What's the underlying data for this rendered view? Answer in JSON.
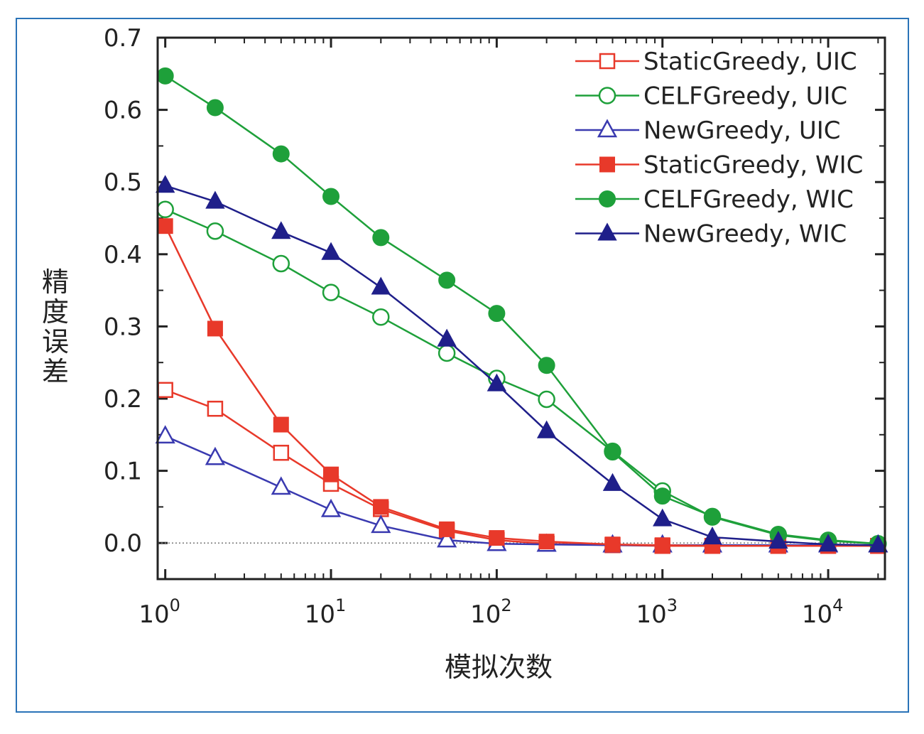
{
  "chart_data": {
    "type": "line",
    "xscale": "log",
    "xlabel": "模拟次数",
    "ylabel": "精度误差",
    "xlim": [
      0.9,
      22000
    ],
    "ylim": [
      -0.05,
      0.7
    ],
    "x_ticks": [
      {
        "value": 1,
        "base": "10",
        "exp": "0"
      },
      {
        "value": 10,
        "base": "10",
        "exp": "1"
      },
      {
        "value": 100,
        "base": "10",
        "exp": "2"
      },
      {
        "value": 1000,
        "base": "10",
        "exp": "3"
      },
      {
        "value": 10000,
        "base": "10",
        "exp": "4"
      }
    ],
    "y_ticks": [
      {
        "value": 0.0,
        "label": "0.0"
      },
      {
        "value": 0.1,
        "label": "0.1"
      },
      {
        "value": 0.2,
        "label": "0.2"
      },
      {
        "value": 0.3,
        "label": "0.3"
      },
      {
        "value": 0.4,
        "label": "0.4"
      },
      {
        "value": 0.5,
        "label": "0.5"
      },
      {
        "value": 0.6,
        "label": "0.6"
      },
      {
        "value": 0.7,
        "label": "0.7"
      }
    ],
    "zero_reference_line": true,
    "legend_position": "top-right",
    "x": [
      1,
      2,
      5,
      10,
      20,
      50,
      100,
      200,
      500,
      1000,
      2000,
      5000,
      10000,
      20000
    ],
    "series": [
      {
        "name": "StaticGreedy, UIC",
        "color": "#e8392a",
        "marker": "square",
        "filled": false,
        "values": [
          0.212,
          0.186,
          0.125,
          0.082,
          0.047,
          0.017,
          0.004,
          -0.001,
          -0.003,
          -0.004,
          -0.004,
          -0.004,
          -0.004,
          -0.004
        ]
      },
      {
        "name": "CELFGreedy, UIC",
        "color": "#1ea03a",
        "marker": "circle",
        "filled": false,
        "values": [
          0.462,
          0.432,
          0.387,
          0.347,
          0.313,
          0.263,
          0.228,
          0.199,
          0.127,
          0.072,
          0.036,
          0.011,
          0.003,
          -0.001
        ]
      },
      {
        "name": "NewGreedy, UIC",
        "color": "#3a3ab0",
        "marker": "triangle",
        "filled": false,
        "values": [
          0.148,
          0.118,
          0.077,
          0.046,
          0.024,
          0.004,
          -0.001,
          -0.002,
          -0.003,
          -0.003,
          -0.003,
          -0.003,
          -0.003,
          -0.003
        ]
      },
      {
        "name": "StaticGreedy, WIC",
        "color": "#e8392a",
        "marker": "square",
        "filled": true,
        "values": [
          0.439,
          0.297,
          0.164,
          0.095,
          0.05,
          0.019,
          0.007,
          0.002,
          -0.002,
          -0.003,
          -0.004,
          -0.004,
          -0.004,
          -0.004
        ]
      },
      {
        "name": "CELFGreedy, WIC",
        "color": "#1ea03a",
        "marker": "circle",
        "filled": true,
        "values": [
          0.647,
          0.603,
          0.539,
          0.48,
          0.423,
          0.364,
          0.318,
          0.246,
          0.126,
          0.065,
          0.037,
          0.012,
          0.004,
          -0.001
        ]
      },
      {
        "name": "NewGreedy, WIC",
        "color": "#1f1f8a",
        "marker": "triangle",
        "filled": true,
        "values": [
          0.495,
          0.473,
          0.431,
          0.402,
          0.354,
          0.282,
          0.22,
          0.155,
          0.082,
          0.033,
          0.008,
          0.002,
          -0.002,
          -0.003
        ]
      }
    ]
  }
}
